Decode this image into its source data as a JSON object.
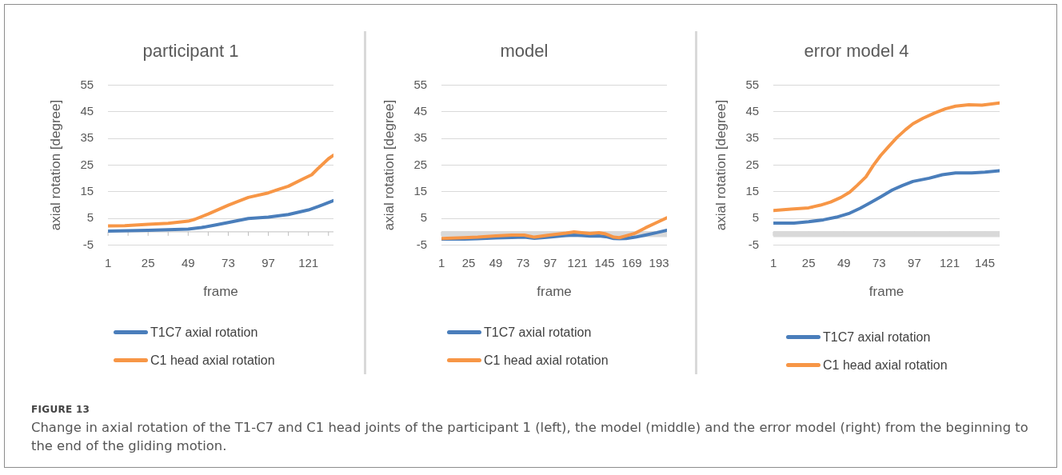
{
  "chart_data": [
    {
      "type": "line",
      "title": "participant 1",
      "xlabel": "frame",
      "ylabel": "axial rotation [degree]",
      "xlim": [
        1,
        136
      ],
      "xticks": [
        1,
        {
          "value": 13,
          "label": null
        },
        25,
        {
          "value": 37,
          "label": null
        },
        49,
        {
          "value": 61,
          "label": null
        },
        73,
        {
          "value": 85,
          "label": null
        },
        97,
        {
          "value": 109,
          "label": null
        },
        121,
        {
          "value": 133,
          "label": null
        }
      ],
      "ylim": [
        -5,
        55
      ],
      "yticks": [
        -5,
        5,
        15,
        25,
        35,
        45,
        55
      ],
      "grid": "y",
      "legend": "bottom",
      "series": [
        {
          "name": "T1C7 axial rotation",
          "color": "#4a7ebb",
          "x": [
            1,
            13,
            25,
            37,
            49,
            57,
            65,
            73,
            85,
            97,
            109,
            121,
            127,
            136
          ],
          "values": [
            0.3,
            0.4,
            0.6,
            0.8,
            1.0,
            1.6,
            2.5,
            3.5,
            5.0,
            5.5,
            6.5,
            8.2,
            9.5,
            11.7
          ]
        },
        {
          "name": "C1 head axial rotation",
          "color": "#f79646",
          "x": [
            1,
            11,
            25,
            37,
            49,
            53,
            61,
            73,
            85,
            97,
            103,
            109,
            118,
            123,
            127,
            133,
            136
          ],
          "values": [
            2.2,
            2.3,
            2.8,
            3.2,
            4.0,
            4.7,
            6.7,
            10,
            12.9,
            14.6,
            15.9,
            17.1,
            19.9,
            21.4,
            23.9,
            27.4,
            28.7
          ]
        }
      ]
    },
    {
      "type": "line",
      "title": "model",
      "xlabel": "frame",
      "ylabel": "axial rotation [degree]",
      "xlim": [
        1,
        200
      ],
      "xticks": [
        1,
        25,
        49,
        73,
        97,
        121,
        145,
        169,
        193
      ],
      "ylim": [
        -5,
        55
      ],
      "yticks": [
        -5,
        5,
        15,
        25,
        35,
        45,
        55
      ],
      "grid": "y",
      "legend": "bottom",
      "bands": [
        {
          "axis": "y",
          "from": -2,
          "to": 0,
          "color": "#d9d9d9"
        }
      ],
      "series": [
        {
          "name": "T1C7 axial rotation",
          "color": "#4a7ebb",
          "x": [
            1,
            21,
            33,
            49,
            63,
            74,
            83,
            96,
            111,
            118,
            125,
            132,
            140,
            146,
            153,
            158,
            164,
            172,
            181,
            191,
            200
          ],
          "values": [
            -2.7,
            -2.7,
            -2.6,
            -2.3,
            -2.1,
            -2.0,
            -2.4,
            -2.0,
            -1.4,
            -1.2,
            -1.4,
            -1.6,
            -1.5,
            -1.8,
            -2.5,
            -2.6,
            -2.5,
            -2.0,
            -1.2,
            -0.3,
            0.6
          ]
        },
        {
          "name": "C1 head axial rotation",
          "color": "#f79646",
          "x": [
            1,
            21,
            33,
            49,
            63,
            74,
            83,
            96,
            111,
            118,
            125,
            132,
            140,
            146,
            153,
            158,
            164,
            172,
            181,
            191,
            200
          ],
          "values": [
            -2.5,
            -2.2,
            -2.0,
            -1.5,
            -1.2,
            -1.2,
            -2.0,
            -1.2,
            -0.5,
            0,
            -0.3,
            -0.6,
            -0.3,
            -0.8,
            -2.0,
            -2.2,
            -1.5,
            -0.5,
            1.5,
            3.5,
            5.3
          ]
        }
      ]
    },
    {
      "type": "line",
      "title": "error model 4",
      "xlabel": "frame",
      "ylabel": "axial rotation [degree]",
      "xlim": [
        1,
        155
      ],
      "xticks": [
        1,
        25,
        49,
        73,
        97,
        121,
        145
      ],
      "ylim": [
        -5,
        55
      ],
      "yticks": [
        -5,
        5,
        15,
        25,
        35,
        45,
        55
      ],
      "grid": "y",
      "legend": "bottom",
      "bands": [
        {
          "axis": "y",
          "from": -2,
          "to": 0,
          "color": "#d9d9d9"
        }
      ],
      "series": [
        {
          "name": "T1C7 axial rotation",
          "color": "#4a7ebb",
          "x": [
            1,
            15,
            25,
            35,
            44,
            53,
            60,
            67,
            74,
            82,
            89,
            96,
            107,
            116,
            125,
            136,
            145,
            155
          ],
          "values": [
            3.3,
            3.3,
            3.8,
            4.5,
            5.5,
            7.0,
            8.8,
            10.9,
            13.1,
            15.7,
            17.4,
            18.9,
            20.1,
            21.4,
            22.1,
            22.1,
            22.4,
            22.9
          ]
        },
        {
          "name": "C1 head axial rotation",
          "color": "#f79646",
          "x": [
            1,
            13,
            25,
            33,
            40,
            47,
            53,
            58,
            64,
            69,
            74,
            80,
            85,
            91,
            96,
            103,
            111,
            118,
            125,
            134,
            143,
            155
          ],
          "values": [
            8.0,
            8.5,
            9.0,
            10,
            11.2,
            12.9,
            14.9,
            17.4,
            20.6,
            24.9,
            28.6,
            32.3,
            35.3,
            38.3,
            40.5,
            42.6,
            44.6,
            46.1,
            47.1,
            47.6,
            47.5,
            48.3
          ]
        }
      ]
    },
    {
      "type": "other",
      "title": "FIGURE 13",
      "annotations": [
        "Change in axial rotation of the T1-C7 and C1 head joints of the participant 1 (left), the model (middle) and the error model (right) from the beginning to the end of the gliding motion."
      ]
    }
  ]
}
